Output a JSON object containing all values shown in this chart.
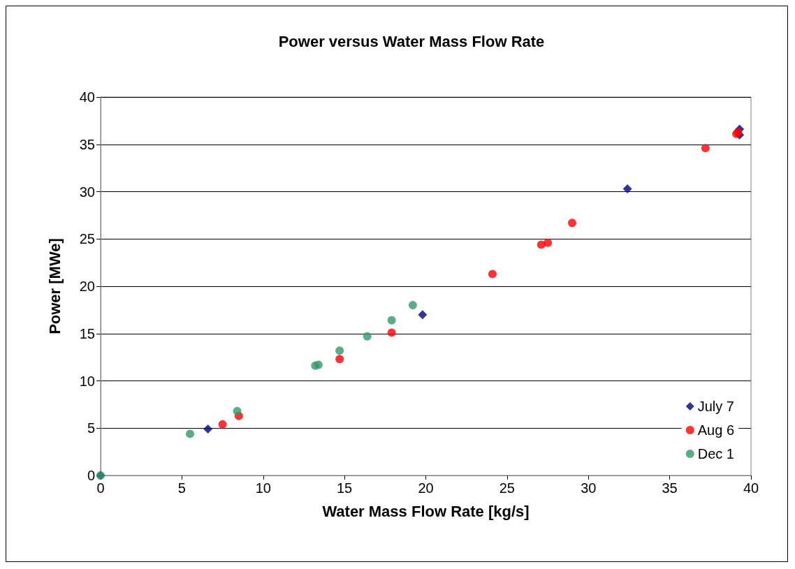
{
  "chart_data": {
    "type": "scatter",
    "title": "Power versus Water Mass Flow Rate",
    "xlabel": "Water Mass Flow Rate [kg/s]",
    "ylabel": "Power [MWe]",
    "xlim": [
      0,
      40
    ],
    "xticks": [
      0,
      5,
      10,
      15,
      20,
      25,
      30,
      35,
      40
    ],
    "ylim": [
      0,
      40
    ],
    "yticks": [
      0,
      5,
      10,
      15,
      20,
      25,
      30,
      35,
      40
    ],
    "grid": "y",
    "legend": "bottom right",
    "series": [
      {
        "name": "July 7",
        "color": "#000080",
        "marker": "diamond",
        "x": [
          0,
          6.6,
          19.8,
          32.4,
          39.3,
          39.3
        ],
        "values": [
          0,
          4.9,
          17.0,
          30.3,
          36.6,
          36.0
        ]
      },
      {
        "name": "Aug 6",
        "color": "#ff0000",
        "marker": "circle",
        "x": [
          7.5,
          8.5,
          14.7,
          17.9,
          24.1,
          27.1,
          27.5,
          29.0,
          37.2,
          39.1,
          39.2
        ],
        "values": [
          5.4,
          6.3,
          12.3,
          15.1,
          21.3,
          24.4,
          24.6,
          26.7,
          34.6,
          36.1,
          36.3
        ]
      },
      {
        "name": "Dec 1",
        "color": "#339966",
        "marker": "circle",
        "x": [
          0,
          5.5,
          8.4,
          13.2,
          13.4,
          14.7,
          16.4,
          17.9,
          19.2
        ],
        "values": [
          0,
          4.4,
          6.8,
          11.6,
          11.7,
          13.2,
          14.7,
          16.4,
          18.0
        ]
      }
    ]
  }
}
